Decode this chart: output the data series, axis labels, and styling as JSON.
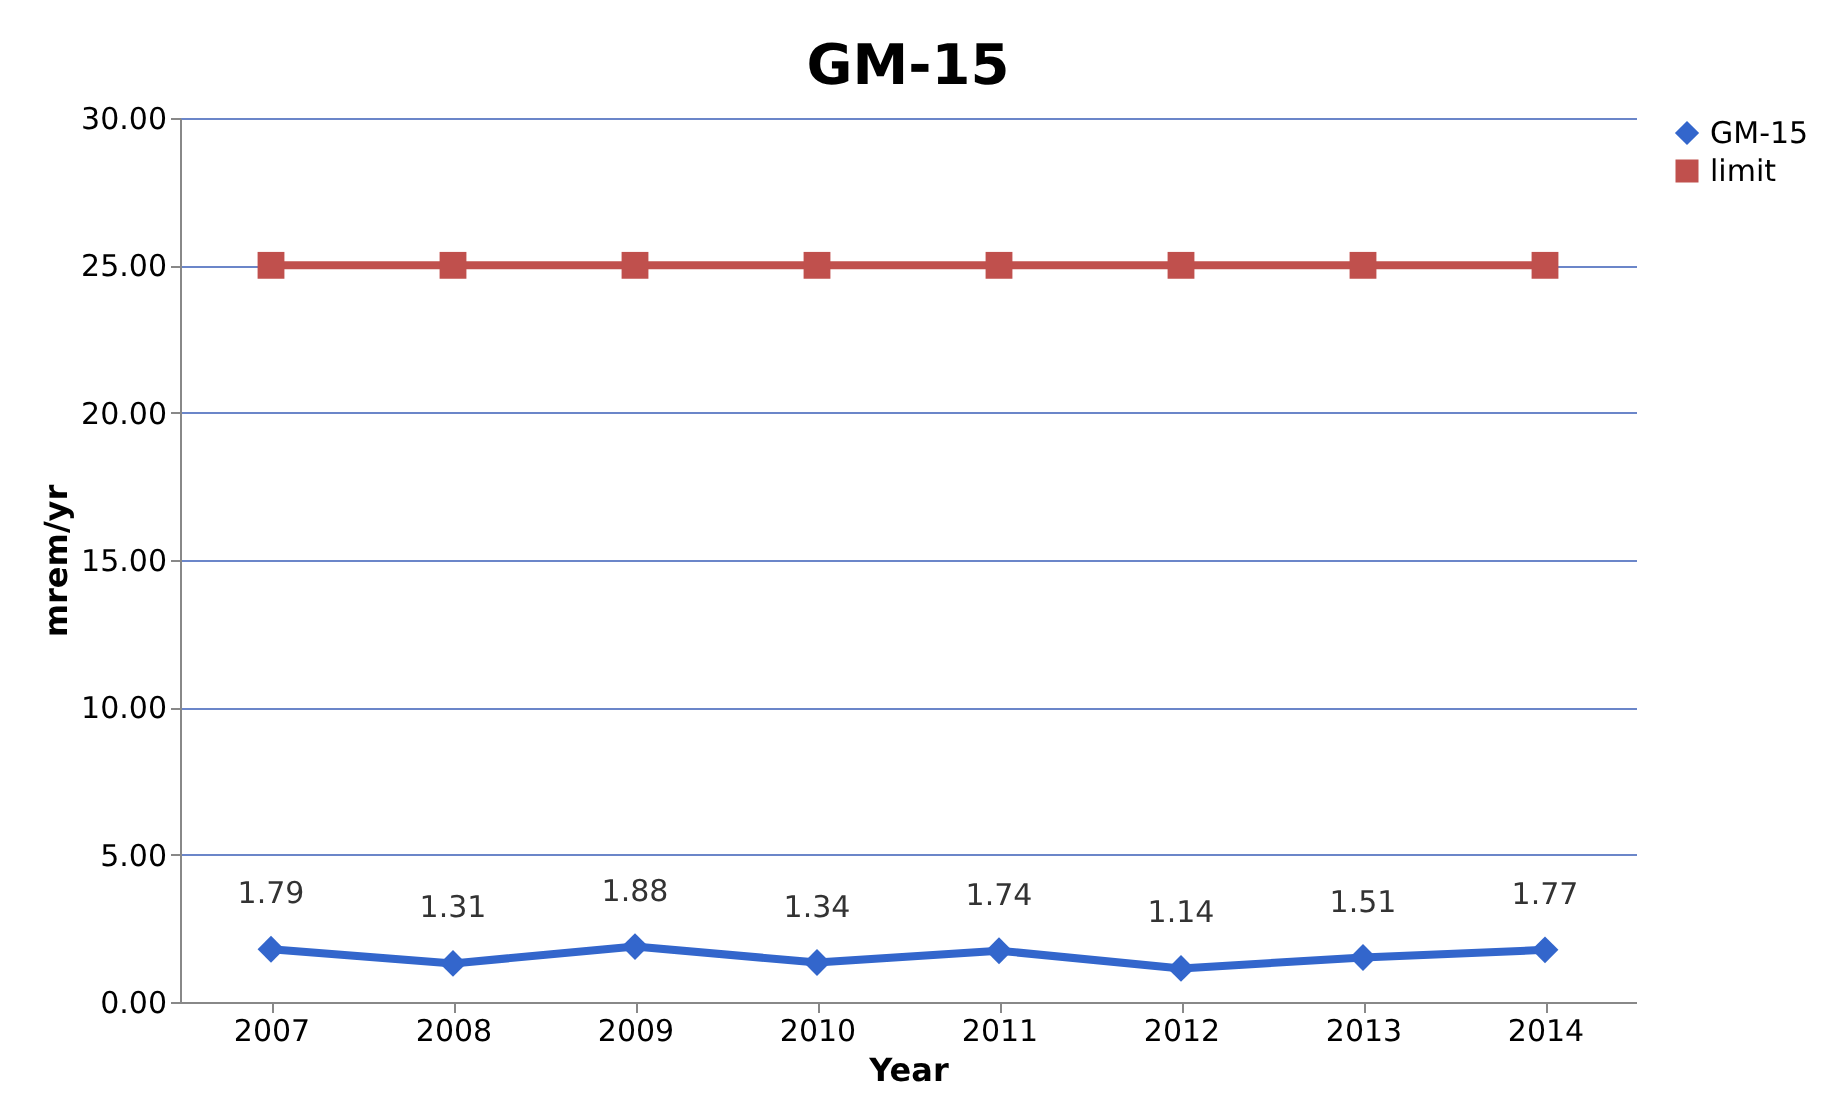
{
  "chart_data": {
    "type": "line",
    "title": "GM-15",
    "xlabel": "Year",
    "ylabel": "mrem/yr",
    "categories": [
      "2007",
      "2008",
      "2009",
      "2010",
      "2011",
      "2012",
      "2013",
      "2014"
    ],
    "series": [
      {
        "name": "GM-15",
        "color": "#3366cc",
        "marker": "diamond",
        "data_labels": true,
        "values": [
          1.79,
          1.31,
          1.88,
          1.34,
          1.74,
          1.14,
          1.51,
          1.77
        ]
      },
      {
        "name": "limit",
        "color": "#c0504d",
        "marker": "square",
        "values": [
          25,
          25,
          25,
          25,
          25,
          25,
          25,
          25
        ]
      }
    ],
    "ylim": [
      0,
      30
    ],
    "yticks": [
      {
        "value": 0,
        "label": "0.00"
      },
      {
        "value": 5,
        "label": "5.00"
      },
      {
        "value": 10,
        "label": "10.00"
      },
      {
        "value": 15,
        "label": "15.00"
      },
      {
        "value": 20,
        "label": "20.00"
      },
      {
        "value": 25,
        "label": "25.00"
      },
      {
        "value": 30,
        "label": "30.00"
      }
    ],
    "grid": "y",
    "legend": "right",
    "line_style": "solid"
  }
}
